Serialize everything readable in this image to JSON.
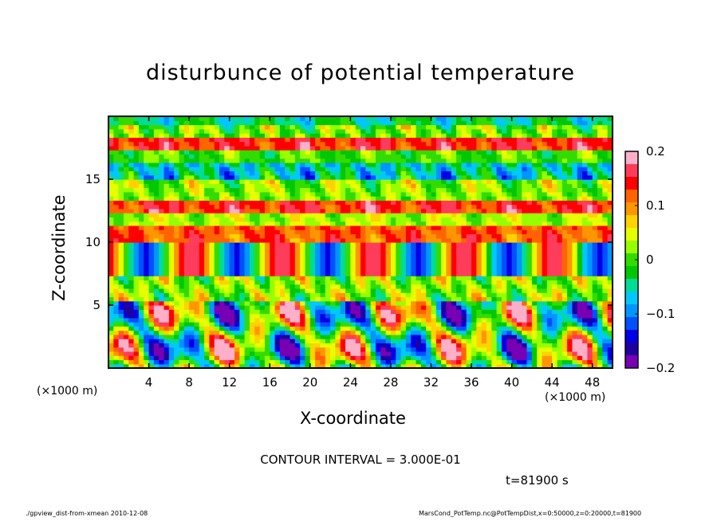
{
  "chart_data": {
    "type": "heatmap",
    "title": "disturbunce of potential temperature",
    "xlabel": "X-coordinate",
    "ylabel": "Z-coordinate",
    "x_unit_left": "(×1000 m)",
    "x_unit_right": "(×1000 m)",
    "xticks": [
      "4",
      "8",
      "12",
      "16",
      "20",
      "24",
      "28",
      "32",
      "36",
      "40",
      "44",
      "48"
    ],
    "xtick_values": [
      4,
      8,
      12,
      16,
      20,
      24,
      28,
      32,
      36,
      40,
      44,
      48
    ],
    "yticks": [
      "5",
      "10",
      "15"
    ],
    "ytick_values": [
      5,
      10,
      15
    ],
    "xlim": [
      0,
      50
    ],
    "ylim": [
      0,
      20
    ],
    "colorbar": {
      "ticks": [
        "0.2",
        "0.1",
        "0",
        "−0.1",
        "−0.2"
      ],
      "tick_values": [
        0.2,
        0.1,
        0,
        -0.1,
        -0.2
      ],
      "range": [
        -0.2,
        0.2
      ],
      "colors": [
        "#ffb0c8",
        "#ff3c5a",
        "#ff0000",
        "#ff6400",
        "#ff9600",
        "#ffd200",
        "#e6ff00",
        "#96ff00",
        "#32dc00",
        "#00c800",
        "#00dc96",
        "#00c8ff",
        "#0096ff",
        "#0050ff",
        "#0000e6",
        "#1e00a0",
        "#7800b4"
      ]
    },
    "contour_interval": "CONTOUR INTERVAL = 3.000E-01",
    "time": "t=81900 s"
  },
  "footer": {
    "left": "./gpview_dist-from-xmean   2010-12-08",
    "right": "MarsCond_PotTemp.nc@PotTempDist,x=0:50000,z=0:20000,t=81900"
  }
}
